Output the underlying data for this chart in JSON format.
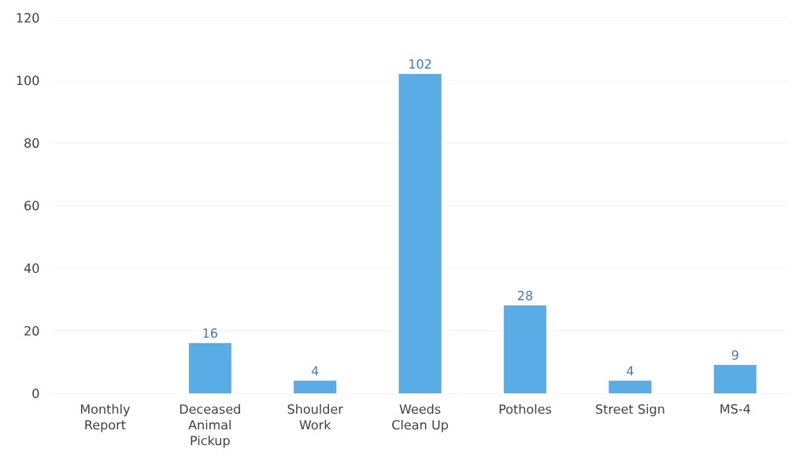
{
  "chart_data": {
    "type": "bar",
    "categories": [
      "Monthly Report",
      "Deceased Animal Pickup",
      "Shoulder Work",
      "Weeds Clean Up",
      "Potholes",
      "Street Sign",
      "MS-4"
    ],
    "values": [
      null,
      16,
      4,
      102,
      28,
      4,
      9
    ],
    "color": "#5aace6",
    "ylim": [
      0,
      120
    ],
    "yticks": [
      0,
      20,
      40,
      60,
      80,
      100,
      120
    ],
    "grid": "y",
    "data_labels": true
  }
}
